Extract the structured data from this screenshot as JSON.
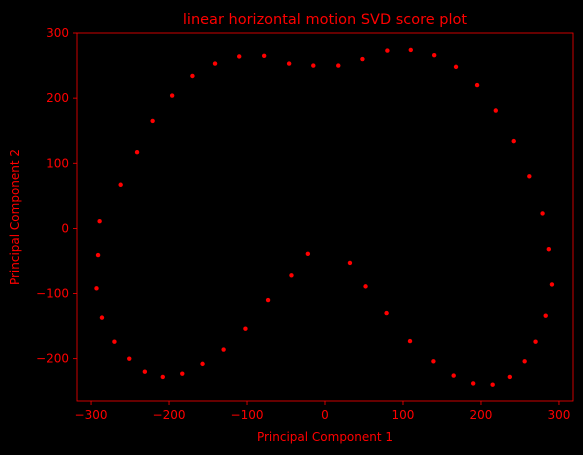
{
  "colors": {
    "background": "#000000",
    "accent": "#ff0000"
  },
  "chart_data": {
    "type": "scatter",
    "title": "linear horizontal motion SVD score plot",
    "xlabel": "Principal Component 1",
    "ylabel": "Principal Component 2",
    "xlim": [
      -318,
      318
    ],
    "ylim": [
      -265,
      300
    ],
    "xticks": [
      -300,
      -200,
      -100,
      0,
      100,
      200,
      300
    ],
    "yticks": [
      -200,
      -100,
      0,
      100,
      200,
      300
    ],
    "grid": false,
    "marker_color": "#ff0000",
    "points": [
      [
        -289,
        11
      ],
      [
        -291,
        -41
      ],
      [
        -293,
        -92
      ],
      [
        -286,
        -137
      ],
      [
        -270,
        -174
      ],
      [
        -251,
        -200
      ],
      [
        -231,
        -220
      ],
      [
        -208,
        -228
      ],
      [
        -183,
        -223
      ],
      [
        -157,
        -208
      ],
      [
        -130,
        -186
      ],
      [
        -102,
        -154
      ],
      [
        -73,
        -110
      ],
      [
        -43,
        -72
      ],
      [
        -22,
        -39
      ],
      [
        32,
        -53
      ],
      [
        52,
        -89
      ],
      [
        79,
        -130
      ],
      [
        109,
        -173
      ],
      [
        139,
        -204
      ],
      [
        165,
        -226
      ],
      [
        190,
        -238
      ],
      [
        215,
        -240
      ],
      [
        237,
        -228
      ],
      [
        256,
        -204
      ],
      [
        270,
        -174
      ],
      [
        283,
        -134
      ],
      [
        291,
        -86
      ],
      [
        287,
        -32
      ],
      [
        279,
        23
      ],
      [
        262,
        80
      ],
      [
        242,
        134
      ],
      [
        219,
        181
      ],
      [
        195,
        220
      ],
      [
        168,
        248
      ],
      [
        140,
        266
      ],
      [
        110,
        274
      ],
      [
        80,
        273
      ],
      [
        48,
        260
      ],
      [
        17,
        250
      ],
      [
        -15,
        250
      ],
      [
        -46,
        253
      ],
      [
        -78,
        265
      ],
      [
        -110,
        264
      ],
      [
        -141,
        253
      ],
      [
        -170,
        234
      ],
      [
        -196,
        204
      ],
      [
        -221,
        165
      ],
      [
        -241,
        117
      ],
      [
        -262,
        67
      ]
    ]
  }
}
